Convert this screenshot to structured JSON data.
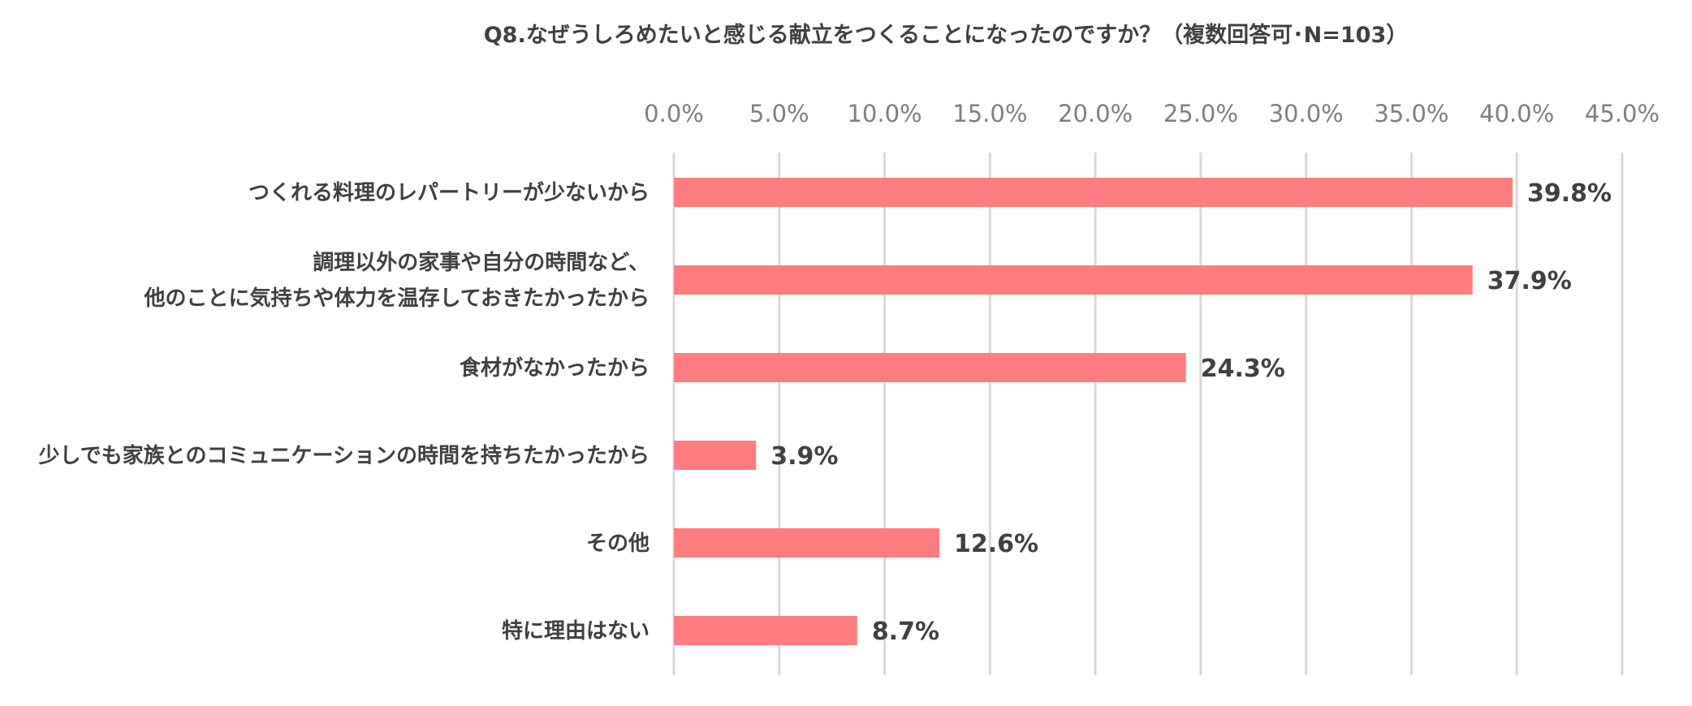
{
  "chart_data": {
    "type": "bar",
    "orientation": "horizontal",
    "title": "Q8.なぜうしろめたいと感じる献立をつくることになったのですか？（複数回答可･N=103）",
    "categories": [
      [
        "つくれる料理のレパートリーが少ないから"
      ],
      [
        "調理以外の家事や自分の時間など、",
        "他のことに気持ちや体力を温存しておきたかったから"
      ],
      [
        "食材がなかったから"
      ],
      [
        "少しでも家族とのコミュニケーションの時間を持ちたかったから"
      ],
      [
        "その他"
      ],
      [
        "特に理由はない"
      ]
    ],
    "values": [
      39.8,
      37.9,
      24.3,
      3.9,
      12.6,
      8.7
    ],
    "value_labels": [
      "39.8%",
      "37.9%",
      "24.3%",
      "3.9%",
      "12.6%",
      "8.7%"
    ],
    "x_ticks": [
      "0.0%",
      "5.0%",
      "10.0%",
      "15.0%",
      "20.0%",
      "25.0%",
      "30.0%",
      "35.0%",
      "40.0%",
      "45.0%"
    ],
    "xlim": [
      0,
      45
    ],
    "x_axis_position": "top",
    "grid": true,
    "legend": "none",
    "bar_color": "#ff7c80",
    "grid_color": "#d9d9d9"
  }
}
